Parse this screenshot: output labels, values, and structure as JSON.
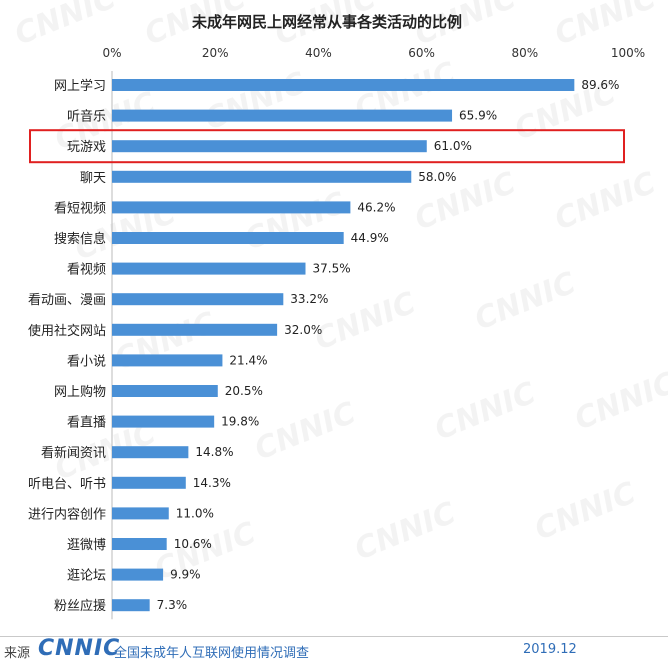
{
  "chart_data": {
    "type": "bar",
    "orientation": "horizontal",
    "title": "未成年网民上网经常从事各类活动的比例",
    "xlim": [
      0,
      100
    ],
    "xticks": [
      "0%",
      "20%",
      "40%",
      "60%",
      "80%",
      "100%"
    ],
    "categories": [
      "网上学习",
      "听音乐",
      "玩游戏",
      "聊天",
      "看短视频",
      "搜索信息",
      "看视频",
      "看动画、漫画",
      "使用社交网站",
      "看小说",
      "网上购物",
      "看直播",
      "看新闻资讯",
      "听电台、听书",
      "进行内容创作",
      "逛微博",
      "逛论坛",
      "粉丝应援"
    ],
    "values": [
      89.6,
      65.9,
      61.0,
      58.0,
      46.2,
      44.9,
      37.5,
      33.2,
      32.0,
      21.4,
      20.5,
      19.8,
      14.8,
      14.3,
      11.0,
      10.6,
      9.9,
      7.3
    ],
    "value_labels": [
      "89.6%",
      "65.9%",
      "61.0%",
      "58.0%",
      "46.2%",
      "44.9%",
      "37.5%",
      "33.2%",
      "32.0%",
      "21.4%",
      "20.5%",
      "19.8%",
      "14.8%",
      "14.3%",
      "11.0%",
      "10.6%",
      "9.9%",
      "7.3%"
    ],
    "highlighted_category": "玩游戏",
    "bar_color": "#4a90d6",
    "highlight_color": "#e02020",
    "grid": false
  },
  "watermark": "CNNIC",
  "footer": {
    "source_label": "来源",
    "logo": "CNNIC",
    "survey": "全国未成年人互联网使用情况调查",
    "date": "2019.12"
  }
}
